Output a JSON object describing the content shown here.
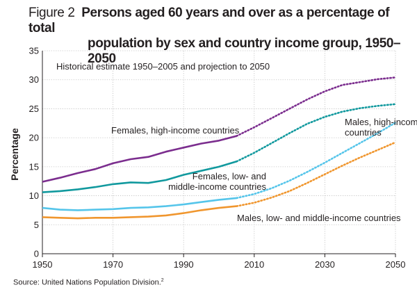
{
  "figure": {
    "title_prefix": "Figure 2",
    "title_line1": "Persons aged 60 years and over as a percentage of total",
    "title_line2": "population by sex and country income group, 1950–2050",
    "source": "Source: United Nations Population Division.",
    "source_note": "2"
  },
  "chart_data": {
    "type": "line",
    "title": "Persons aged 60 years and over as a percentage of total population by sex and country income group, 1950–2050",
    "xlabel": "",
    "ylabel": "Percentage",
    "xlim": [
      1950,
      2050
    ],
    "ylim": [
      0,
      35
    ],
    "xticks": [
      1950,
      1970,
      1990,
      2010,
      2030,
      2050
    ],
    "yticks": [
      0,
      5,
      10,
      15,
      20,
      25,
      30,
      35
    ],
    "grid": true,
    "annotation": "Historical estimate 1950–2005 and projection to 2050",
    "historical_end": 2005,
    "series": [
      {
        "name": "Females, high-income countries",
        "color": "#7b2d8e",
        "x": [
          1950,
          1955,
          1960,
          1965,
          1970,
          1975,
          1980,
          1985,
          1990,
          1995,
          2000,
          2005,
          2010,
          2015,
          2020,
          2025,
          2030,
          2035,
          2040,
          2045,
          2050
        ],
        "y": [
          12.4,
          13.1,
          13.9,
          14.6,
          15.6,
          16.3,
          16.7,
          17.6,
          18.3,
          19.0,
          19.5,
          20.3,
          21.8,
          23.4,
          25.0,
          26.6,
          28.0,
          29.1,
          29.6,
          30.1,
          30.4
        ]
      },
      {
        "name": "Males, high-income countries",
        "color": "#11999e",
        "x": [
          1950,
          1955,
          1960,
          1965,
          1970,
          1975,
          1980,
          1985,
          1990,
          1995,
          2000,
          2005,
          2010,
          2015,
          2020,
          2025,
          2030,
          2035,
          2040,
          2045,
          2050
        ],
        "y": [
          10.6,
          10.8,
          11.1,
          11.5,
          12.0,
          12.3,
          12.2,
          12.7,
          13.6,
          14.3,
          15.0,
          15.9,
          17.4,
          19.1,
          20.8,
          22.4,
          23.6,
          24.5,
          25.1,
          25.5,
          25.8
        ]
      },
      {
        "name": "Females, low- and middle-income countries",
        "color": "#55c5ea",
        "x": [
          1950,
          1955,
          1960,
          1965,
          1970,
          1975,
          1980,
          1985,
          1990,
          1995,
          2000,
          2005,
          2010,
          2015,
          2020,
          2025,
          2030,
          2035,
          2040,
          2045,
          2050
        ],
        "y": [
          7.9,
          7.6,
          7.5,
          7.6,
          7.7,
          7.9,
          8.0,
          8.2,
          8.5,
          8.9,
          9.3,
          9.6,
          10.3,
          11.3,
          12.6,
          14.1,
          15.7,
          17.4,
          19.1,
          20.8,
          22.6
        ]
      },
      {
        "name": "Males, low- and middle-income countries",
        "color": "#f0962e",
        "x": [
          1950,
          1955,
          1960,
          1965,
          1970,
          1975,
          1980,
          1985,
          1990,
          1995,
          2000,
          2005,
          2010,
          2015,
          2020,
          2025,
          2030,
          2035,
          2040,
          2045,
          2050
        ],
        "y": [
          6.3,
          6.2,
          6.1,
          6.2,
          6.2,
          6.3,
          6.4,
          6.6,
          7.0,
          7.5,
          7.9,
          8.2,
          8.8,
          9.7,
          10.8,
          12.2,
          13.7,
          15.2,
          16.6,
          17.9,
          19.2
        ]
      }
    ],
    "labels": [
      {
        "series": 0,
        "lines": [
          "Females, high-income countries"
        ]
      },
      {
        "series": 1,
        "lines": [
          "Males, high-income",
          "countries"
        ]
      },
      {
        "series": 2,
        "lines": [
          "Females, low- and",
          "middle-income countries"
        ]
      },
      {
        "series": 3,
        "lines": [
          "Males, low- and middle-income countries"
        ]
      }
    ]
  }
}
